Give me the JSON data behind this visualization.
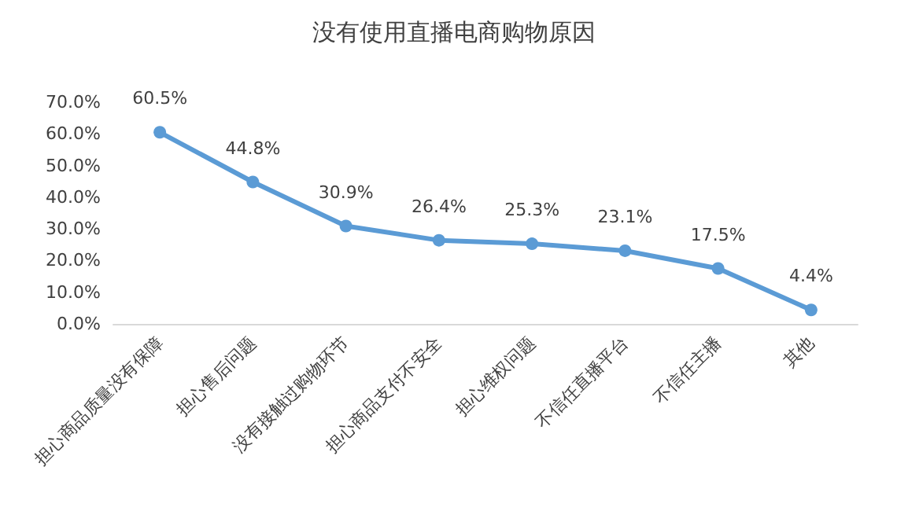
{
  "chart_data": {
    "type": "line",
    "title": "没有使用直播电商购物原因",
    "categories": [
      "担心商品质量没有保障",
      "担心售后问题",
      "没有接触过购物环节",
      "担心商品支付不安全",
      "担心维权问题",
      "不信任直播平台",
      "不信任主播",
      "其他"
    ],
    "values": [
      60.5,
      44.8,
      30.9,
      26.4,
      25.3,
      23.1,
      17.5,
      4.4
    ],
    "value_labels": [
      "60.5%",
      "44.8%",
      "30.9%",
      "26.4%",
      "25.3%",
      "23.1%",
      "17.5%",
      "4.4%"
    ],
    "color": "#5b9bd5",
    "ylim": [
      0,
      70
    ],
    "yticks": [
      {
        "value": 0,
        "label": "0.0%"
      },
      {
        "value": 10,
        "label": "10.0%"
      },
      {
        "value": 20,
        "label": "20.0%"
      },
      {
        "value": 30,
        "label": "30.0%"
      },
      {
        "value": 40,
        "label": "40.0%"
      },
      {
        "value": 50,
        "label": "50.0%"
      },
      {
        "value": 60,
        "label": "60.0%"
      },
      {
        "value": 70,
        "label": "70.0%"
      }
    ],
    "marker": "circle",
    "line_style": "solid"
  }
}
